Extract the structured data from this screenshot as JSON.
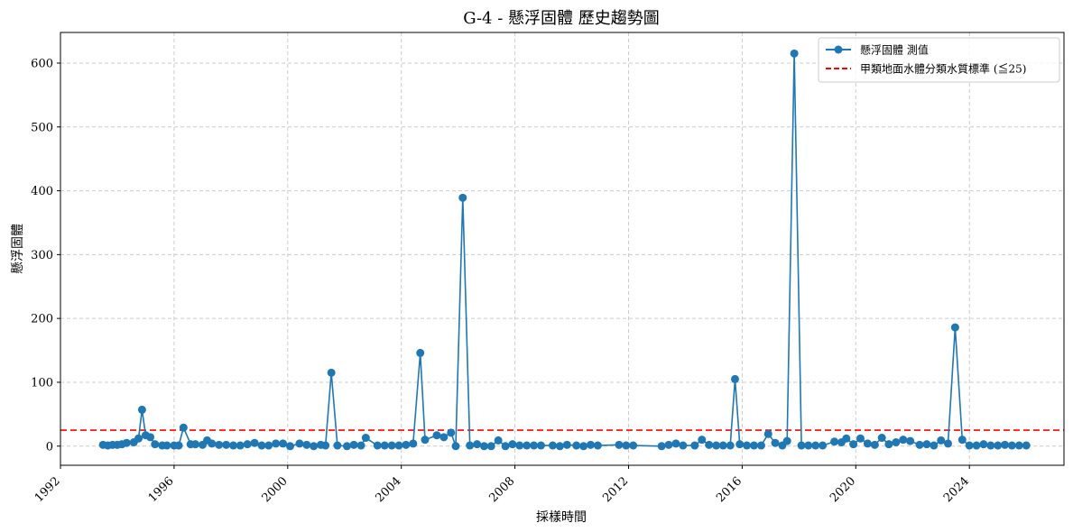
{
  "chart_data": {
    "type": "line",
    "title": "G-4 - 懸浮固體 歷史趨勢圖",
    "xlabel": "採樣時間",
    "ylabel": "懸浮固體",
    "xlim": [
      "1992-01-01",
      "2027-05-01"
    ],
    "ylim": [
      -30,
      648
    ],
    "x_ticks": [
      "1992",
      "1996",
      "2000",
      "2004",
      "2008",
      "2012",
      "2016",
      "2020",
      "2024"
    ],
    "y_ticks": [
      0,
      100,
      200,
      300,
      400,
      500,
      600
    ],
    "grid": true,
    "legend_position": "top-right",
    "series": [
      {
        "name": "懸浮固體 測值",
        "color": "#1f77b4",
        "marker": "circle",
        "points": [
          [
            "1993-07-01",
            2
          ],
          [
            "1993-09-01",
            1
          ],
          [
            "1993-11-01",
            2
          ],
          [
            "1994-01-01",
            2
          ],
          [
            "1994-03-01",
            3
          ],
          [
            "1994-05-01",
            5
          ],
          [
            "1994-08-01",
            6
          ],
          [
            "1994-10-01",
            12
          ],
          [
            "1994-11-15",
            57
          ],
          [
            "1995-01-01",
            17
          ],
          [
            "1995-03-01",
            14
          ],
          [
            "1995-05-01",
            3
          ],
          [
            "1995-08-01",
            1
          ],
          [
            "1995-10-01",
            1
          ],
          [
            "1996-01-01",
            1
          ],
          [
            "1996-03-01",
            1
          ],
          [
            "1996-05-01",
            29
          ],
          [
            "1996-08-01",
            3
          ],
          [
            "1996-10-01",
            3
          ],
          [
            "1997-01-01",
            2
          ],
          [
            "1997-03-01",
            9
          ],
          [
            "1997-05-01",
            4
          ],
          [
            "1997-08-01",
            2
          ],
          [
            "1997-11-01",
            2
          ],
          [
            "1998-02-01",
            1
          ],
          [
            "1998-05-01",
            1
          ],
          [
            "1998-08-01",
            3
          ],
          [
            "1998-11-01",
            5
          ],
          [
            "1999-02-01",
            1
          ],
          [
            "1999-05-01",
            1
          ],
          [
            "1999-08-01",
            4
          ],
          [
            "1999-11-01",
            4
          ],
          [
            "2000-02-01",
            0
          ],
          [
            "2000-06-01",
            4
          ],
          [
            "2000-09-01",
            2
          ],
          [
            "2000-12-01",
            0
          ],
          [
            "2001-03-01",
            2
          ],
          [
            "2001-05-01",
            1
          ],
          [
            "2001-07-15",
            115
          ],
          [
            "2001-10-01",
            1
          ],
          [
            "2002-02-01",
            0
          ],
          [
            "2002-05-01",
            2
          ],
          [
            "2002-08-01",
            1
          ],
          [
            "2002-10-01",
            13
          ],
          [
            "2003-03-01",
            1
          ],
          [
            "2003-06-01",
            1
          ],
          [
            "2003-09-01",
            1
          ],
          [
            "2003-12-01",
            1
          ],
          [
            "2004-03-01",
            2
          ],
          [
            "2004-06-01",
            4
          ],
          [
            "2004-09-01",
            146
          ],
          [
            "2004-11-01",
            10
          ],
          [
            "2005-04-01",
            17
          ],
          [
            "2005-07-01",
            14
          ],
          [
            "2005-10-01",
            21
          ],
          [
            "2005-12-01",
            0
          ],
          [
            "2006-03-01",
            389
          ],
          [
            "2006-06-01",
            1
          ],
          [
            "2006-09-01",
            3
          ],
          [
            "2006-12-01",
            0
          ],
          [
            "2007-03-01",
            0
          ],
          [
            "2007-06-01",
            9
          ],
          [
            "2007-09-01",
            0
          ],
          [
            "2007-12-01",
            3
          ],
          [
            "2008-03-01",
            1
          ],
          [
            "2008-06-01",
            1
          ],
          [
            "2008-09-01",
            1
          ],
          [
            "2008-12-01",
            1
          ],
          [
            "2009-05-01",
            1
          ],
          [
            "2009-08-01",
            0
          ],
          [
            "2009-11-01",
            2
          ],
          [
            "2010-03-01",
            1
          ],
          [
            "2010-06-01",
            0
          ],
          [
            "2010-09-01",
            2
          ],
          [
            "2010-12-01",
            1
          ],
          [
            "2011-09-01",
            2
          ],
          [
            "2011-12-01",
            1
          ],
          [
            "2012-03-01",
            1
          ],
          [
            "2013-03-01",
            0
          ],
          [
            "2013-06-01",
            2
          ],
          [
            "2013-09-01",
            4
          ],
          [
            "2013-12-01",
            1
          ],
          [
            "2014-05-01",
            1
          ],
          [
            "2014-08-01",
            10
          ],
          [
            "2014-11-01",
            2
          ],
          [
            "2015-02-01",
            1
          ],
          [
            "2015-05-01",
            1
          ],
          [
            "2015-08-01",
            1
          ],
          [
            "2015-10-01",
            105
          ],
          [
            "2015-12-01",
            3
          ],
          [
            "2016-03-01",
            1
          ],
          [
            "2016-06-01",
            1
          ],
          [
            "2016-09-01",
            1
          ],
          [
            "2016-12-01",
            19
          ],
          [
            "2017-03-01",
            5
          ],
          [
            "2017-06-01",
            1
          ],
          [
            "2017-08-01",
            8
          ],
          [
            "2017-11-01",
            615
          ],
          [
            "2018-02-01",
            1
          ],
          [
            "2018-05-01",
            1
          ],
          [
            "2018-08-01",
            1
          ],
          [
            "2018-11-01",
            1
          ],
          [
            "2019-04-01",
            7
          ],
          [
            "2019-07-01",
            6
          ],
          [
            "2019-09-01",
            12
          ],
          [
            "2019-12-01",
            3
          ],
          [
            "2020-03-01",
            12
          ],
          [
            "2020-06-01",
            4
          ],
          [
            "2020-09-01",
            2
          ],
          [
            "2020-12-01",
            13
          ],
          [
            "2021-03-01",
            3
          ],
          [
            "2021-06-01",
            6
          ],
          [
            "2021-09-01",
            10
          ],
          [
            "2021-12-01",
            8
          ],
          [
            "2022-04-01",
            2
          ],
          [
            "2022-07-01",
            3
          ],
          [
            "2022-10-01",
            1
          ],
          [
            "2023-01-01",
            9
          ],
          [
            "2023-04-01",
            4
          ],
          [
            "2023-07-01",
            186
          ],
          [
            "2023-10-01",
            10
          ],
          [
            "2024-01-01",
            1
          ],
          [
            "2024-04-01",
            1
          ],
          [
            "2024-07-01",
            3
          ],
          [
            "2024-10-01",
            1
          ],
          [
            "2025-01-01",
            1
          ],
          [
            "2025-04-01",
            2
          ],
          [
            "2025-07-01",
            1
          ],
          [
            "2025-10-01",
            1
          ],
          [
            "2026-01-01",
            1
          ]
        ]
      }
    ],
    "reference_line": {
      "name": "甲類地面水體分類水質標準 (≦25)",
      "value": 25,
      "color": "#ff0000",
      "style": "dashed"
    }
  }
}
